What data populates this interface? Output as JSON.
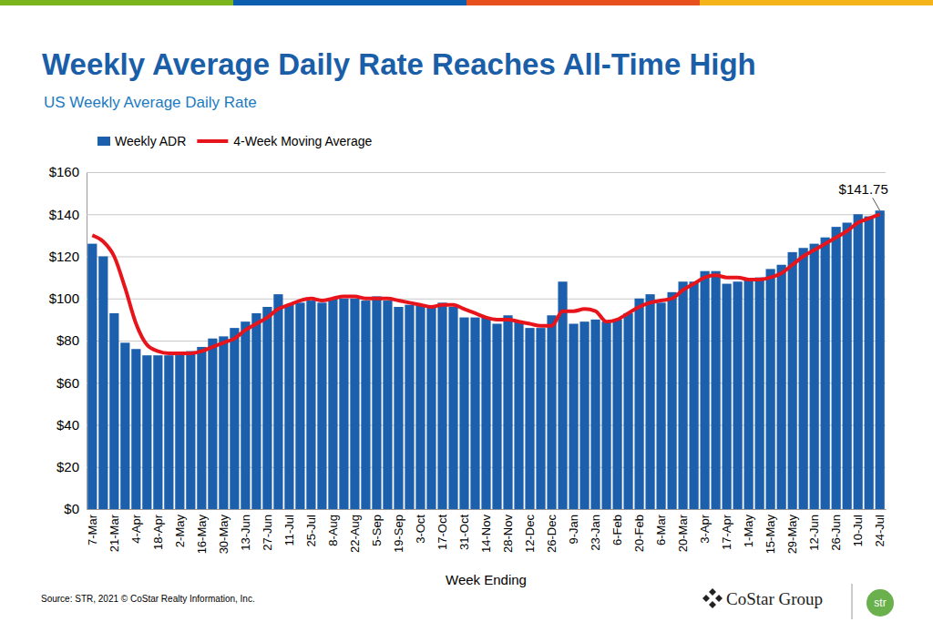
{
  "chart_data": {
    "type": "bar",
    "title": "Weekly Average Daily Rate Reaches All-Time High",
    "subtitle": "US Weekly Average Daily Rate",
    "x_label": "Week Ending",
    "source": "Source: STR, 2021 © CoStar Realty Information, Inc.",
    "logos": [
      "CoStar Group",
      "str"
    ],
    "categories": [
      "7-Mar",
      null,
      "21-Mar",
      null,
      "4-Apr",
      null,
      "18-Apr",
      null,
      "2-May",
      null,
      "16-May",
      null,
      "30-May",
      null,
      "13-Jun",
      null,
      "27-Jun",
      null,
      "11-Jul",
      null,
      "25-Jul",
      null,
      "8-Aug",
      null,
      "22-Aug",
      null,
      "5-Sep",
      null,
      "19-Sep",
      null,
      "3-Oct",
      null,
      "17-Oct",
      null,
      "31-Oct",
      null,
      "14-Nov",
      null,
      "28-Nov",
      null,
      "12-Dec",
      null,
      "26-Dec",
      null,
      "9-Jan",
      null,
      "23-Jan",
      null,
      "6-Feb",
      null,
      "20-Feb",
      null,
      "6-Mar",
      null,
      "20-Mar",
      null,
      "3-Apr",
      null,
      "17-Apr",
      null,
      "1-May",
      null,
      "15-May",
      null,
      "29-May",
      null,
      "12-Jun",
      null,
      "26-Jun",
      null,
      "10-Jul",
      null,
      "24-Jul"
    ],
    "series": [
      {
        "name": "Weekly ADR",
        "type": "bar",
        "color": "#1b5fad",
        "values": [
          126,
          120,
          93,
          79,
          76,
          73,
          73,
          73,
          74,
          75,
          77,
          81,
          82,
          86,
          89,
          93,
          96,
          102,
          97,
          98,
          99,
          98,
          100,
          100,
          100,
          99,
          101,
          99,
          96,
          97,
          97,
          96,
          98,
          96,
          91,
          91,
          91,
          88,
          92,
          89,
          86,
          86,
          92,
          108,
          88,
          89,
          90,
          89,
          90,
          93,
          100,
          102,
          98,
          103,
          108,
          108,
          113,
          113,
          107,
          108,
          109,
          110,
          114,
          116,
          122,
          124,
          126,
          129,
          134,
          136,
          140,
          139,
          141.75
        ]
      },
      {
        "name": "4-Week Moving Average",
        "type": "line",
        "color": "#e8141b",
        "values": [
          130,
          127,
          120,
          105,
          88,
          78,
          75,
          74,
          74,
          74,
          75,
          77,
          79,
          81,
          85,
          88,
          91,
          95,
          97,
          99,
          100,
          99,
          100,
          101,
          101,
          100,
          100,
          100,
          99,
          98,
          97,
          96,
          97,
          97,
          95,
          93,
          91,
          90,
          90,
          89,
          88,
          87,
          87,
          94,
          94,
          95,
          94,
          89,
          90,
          93,
          96,
          98,
          99,
          100,
          104,
          107,
          110,
          111,
          110,
          110,
          109,
          109,
          110,
          112,
          116,
          120,
          123,
          126,
          129,
          132,
          136,
          138,
          140
        ]
      }
    ],
    "annotation": {
      "text": "$141.75",
      "value": 141.75
    },
    "ylim": [
      0,
      160
    ],
    "yticks": [
      {
        "value": 0,
        "label": "$0"
      },
      {
        "value": 20,
        "label": "$20"
      },
      {
        "value": 40,
        "label": "$40"
      },
      {
        "value": 60,
        "label": "$60"
      },
      {
        "value": 80,
        "label": "$80"
      },
      {
        "value": 100,
        "label": "$100"
      },
      {
        "value": 120,
        "label": "$120"
      },
      {
        "value": 140,
        "label": "$140"
      },
      {
        "value": 160,
        "label": "$160"
      }
    ],
    "grid": true,
    "legend": "top-left"
  }
}
